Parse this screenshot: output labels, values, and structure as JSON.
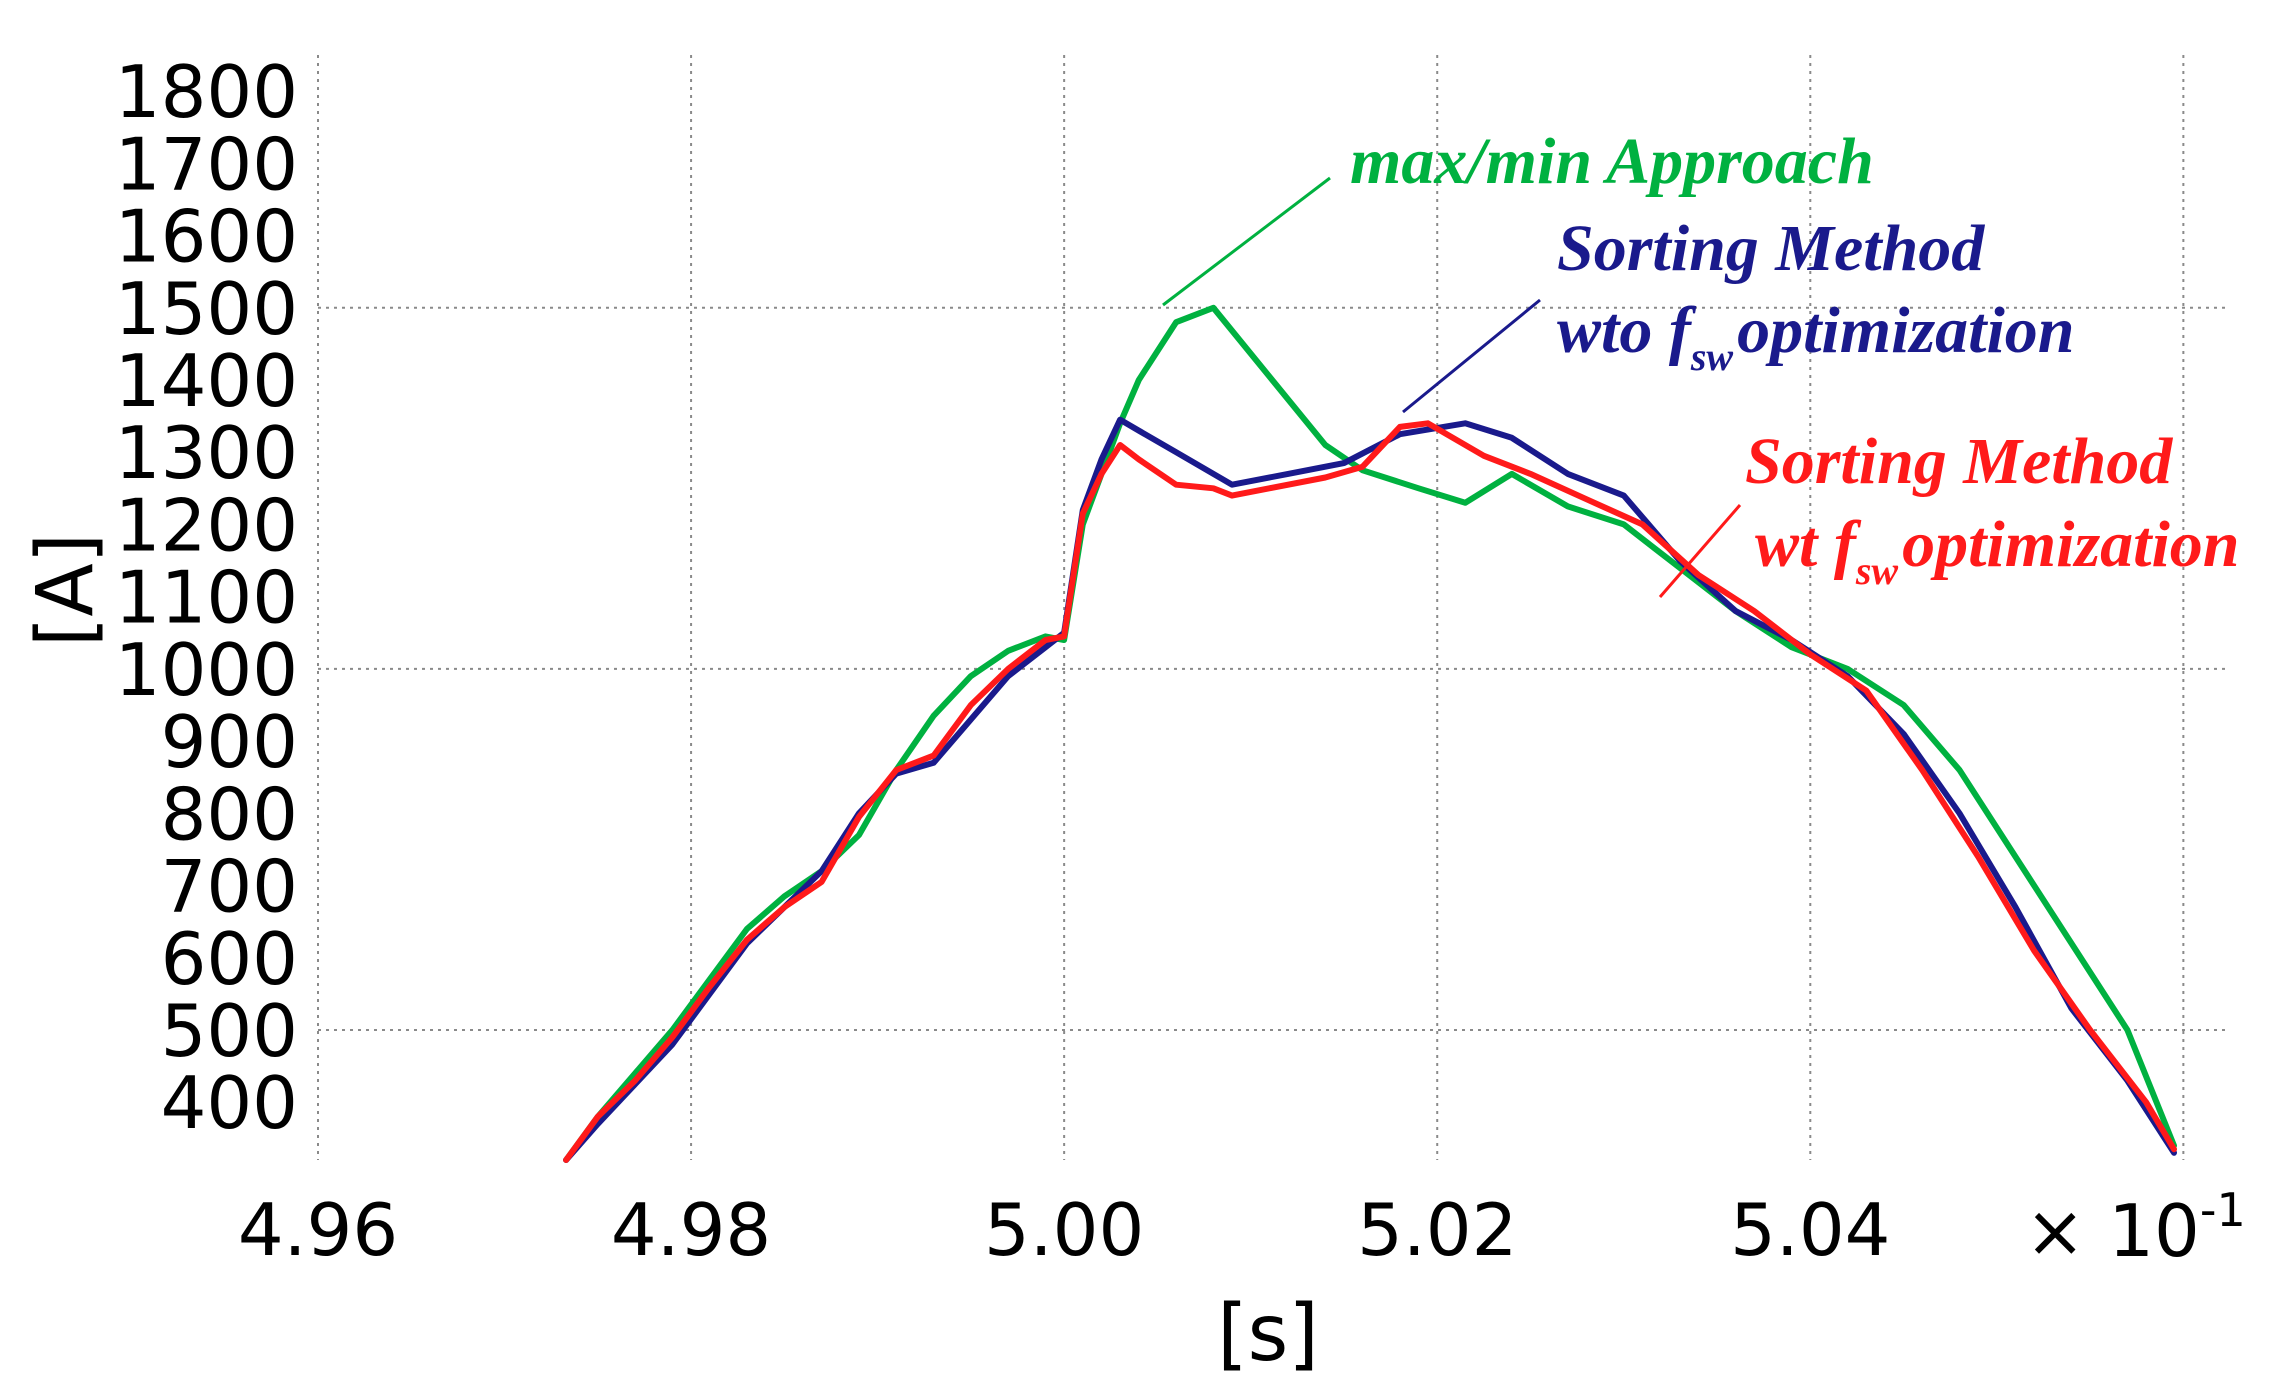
{
  "chart_data": {
    "type": "line",
    "title": "",
    "xlabel": "[s]",
    "ylabel": "[A]",
    "x_multiplier": "× 10",
    "x_multiplier_exp": "-1",
    "xlim": [
      4.96,
      5.0625
    ],
    "ylim": [
      320,
      1850
    ],
    "xticks": [
      "4.96",
      "4.98",
      "5.00",
      "5.02",
      "5.04"
    ],
    "yticks": [
      "400",
      "500",
      "600",
      "700",
      "800",
      "900",
      "1000",
      "1100",
      "1200",
      "1300",
      "1400",
      "1500",
      "1600",
      "1700",
      "1800"
    ],
    "grid": true,
    "series": [
      {
        "name": "max/min Approach",
        "color": "#00b140",
        "x": [
          4.9733,
          4.975,
          4.977,
          4.979,
          4.981,
          4.983,
          4.985,
          4.987,
          4.989,
          4.991,
          4.993,
          4.995,
          4.997,
          4.999,
          5.0,
          5.001,
          5.002,
          5.003,
          5.004,
          5.006,
          5.008,
          5.011,
          5.014,
          5.016,
          5.019,
          5.0215,
          5.024,
          5.027,
          5.03,
          5.033,
          5.036,
          5.039,
          5.042,
          5.045,
          5.048,
          5.051,
          5.054,
          5.057,
          5.0595
        ],
        "y": [
          320,
          380,
          440,
          500,
          570,
          640,
          685,
          720,
          770,
          860,
          935,
          990,
          1025,
          1045,
          1040,
          1200,
          1270,
          1340,
          1400,
          1480,
          1500,
          1405,
          1310,
          1275,
          1250,
          1230,
          1270,
          1225,
          1200,
          1140,
          1080,
          1030,
          1000,
          950,
          860,
          740,
          620,
          500,
          340
        ]
      },
      {
        "name": "Sorting Method wto f_sw optimization",
        "color": "#1a1a8c",
        "x": [
          4.9733,
          4.975,
          4.977,
          4.979,
          4.981,
          4.983,
          4.985,
          4.987,
          4.989,
          4.991,
          4.993,
          4.995,
          4.997,
          4.999,
          5.0,
          5.001,
          5.002,
          5.003,
          5.004,
          5.006,
          5.009,
          5.012,
          5.015,
          5.018,
          5.0215,
          5.024,
          5.027,
          5.03,
          5.033,
          5.036,
          5.039,
          5.042,
          5.045,
          5.048,
          5.051,
          5.054,
          5.057,
          5.0595
        ],
        "y": [
          320,
          370,
          425,
          480,
          550,
          620,
          670,
          720,
          800,
          855,
          870,
          930,
          990,
          1030,
          1050,
          1220,
          1290,
          1345,
          1330,
          1300,
          1255,
          1270,
          1285,
          1325,
          1340,
          1320,
          1270,
          1240,
          1150,
          1080,
          1040,
          990,
          910,
          800,
          670,
          530,
          430,
          330
        ]
      },
      {
        "name": "Sorting Method wt f_sw optimization",
        "color": "#ff1a1a",
        "x": [
          4.9733,
          4.975,
          4.977,
          4.979,
          4.981,
          4.983,
          4.985,
          4.987,
          4.989,
          4.991,
          4.993,
          4.995,
          4.997,
          4.999,
          5.0,
          5.001,
          5.002,
          5.003,
          5.004,
          5.006,
          5.008,
          5.009,
          5.011,
          5.014,
          5.016,
          5.018,
          5.0195,
          5.0225,
          5.025,
          5.028,
          5.031,
          5.034,
          5.037,
          5.04,
          5.043,
          5.046,
          5.049,
          5.052,
          5.055,
          5.058,
          5.0595
        ],
        "y": [
          320,
          380,
          430,
          490,
          560,
          625,
          670,
          705,
          795,
          860,
          880,
          950,
          1000,
          1040,
          1045,
          1215,
          1270,
          1310,
          1290,
          1255,
          1250,
          1240,
          1250,
          1265,
          1280,
          1335,
          1340,
          1295,
          1270,
          1235,
          1200,
          1130,
          1080,
          1020,
          970,
          860,
          740,
          610,
          500,
          400,
          335
        ]
      }
    ],
    "annotations": [
      {
        "series": 0,
        "lines": [
          {
            "text": "max/min Approach"
          }
        ]
      },
      {
        "series": 1,
        "lines": [
          {
            "text": "Sorting Method"
          },
          {
            "pre": "wto f",
            "sub": "sw",
            "post": "optimization"
          }
        ]
      },
      {
        "series": 2,
        "lines": [
          {
            "text": "Sorting Method"
          },
          {
            "pre": "wt f",
            "sub": "sw",
            "post": "optimization"
          }
        ]
      }
    ]
  }
}
